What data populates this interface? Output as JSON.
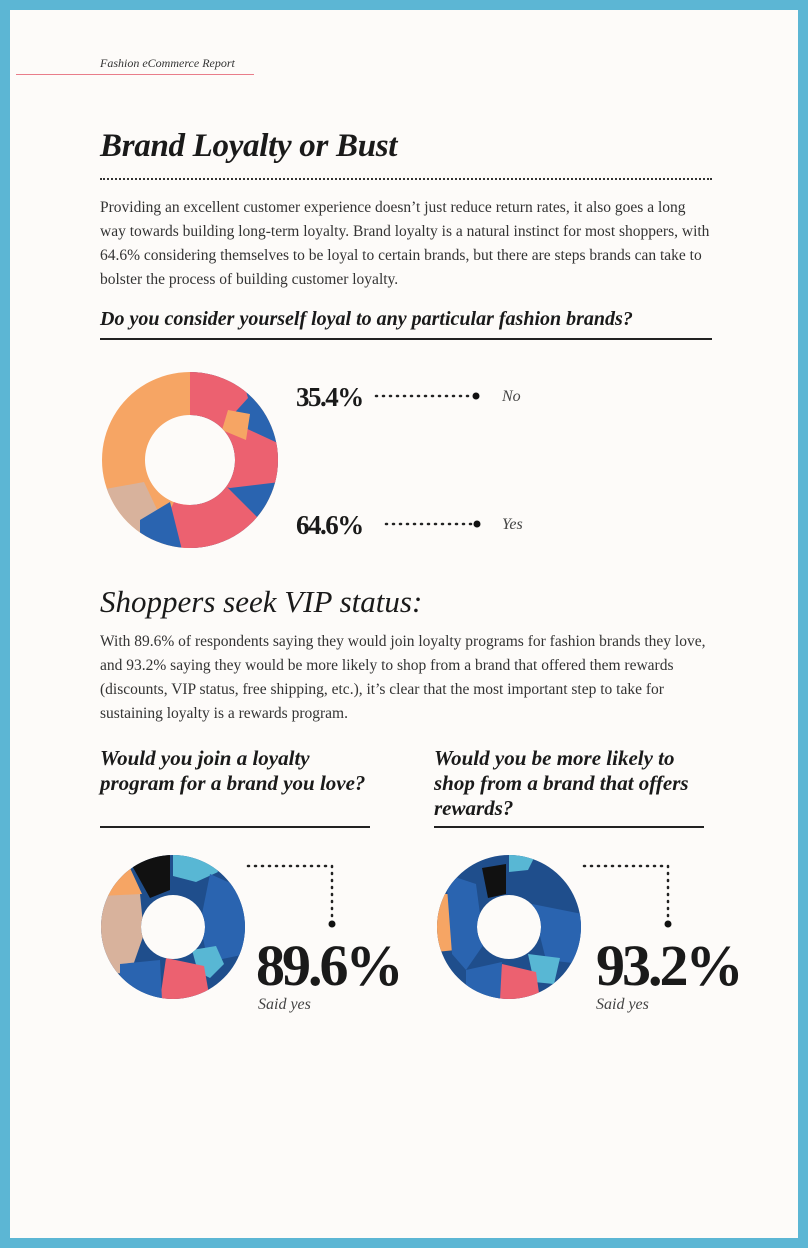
{
  "header": {
    "label": "Fashion eCommerce Report"
  },
  "title": "Brand Loyalty or Bust",
  "intro": "Providing an excellent customer experience doesn’t just reduce return rates, it also goes a long way towards building long-term loyalty. Brand loyalty is a natural instinct for most shoppers, with 64.6% considering themselves to be loyal to certain brands, but there are steps brands can take to bolster the process of building customer loyalty.",
  "section1": {
    "question": "Do you consider yourself loyal to any particular fashion brands?",
    "results": [
      {
        "value": "35.4%",
        "label": "No"
      },
      {
        "value": "64.6%",
        "label": "Yes"
      }
    ]
  },
  "section2": {
    "heading": "Shoppers seek VIP status:",
    "body": "With 89.6% of respondents saying they would join loyalty programs for fashion brands they love, and 93.2% saying they would be more likely to shop from a brand that offered them rewards (discounts, VIP status, free shipping, etc.), it’s clear that the most important step to take for sustaining loyalty is a rewards program.",
    "left": {
      "question": "Would you join a loyalty program for a brand you love?",
      "value": "89.6%",
      "caption": "Said yes"
    },
    "right": {
      "question": "Would you be more likely to shop from a brand that offers rewards?",
      "value": "93.2%",
      "caption": "Said yes"
    }
  },
  "colors": {
    "frame": "#5cb6d4",
    "navy": "#1f4e8c",
    "blue": "#2a64b0",
    "pink": "#ec6170",
    "orange": "#f6a564",
    "tan": "#d8b29c",
    "light_blue": "#58b7d4",
    "black": "#111111",
    "header_rule": "#e97d8a"
  }
}
